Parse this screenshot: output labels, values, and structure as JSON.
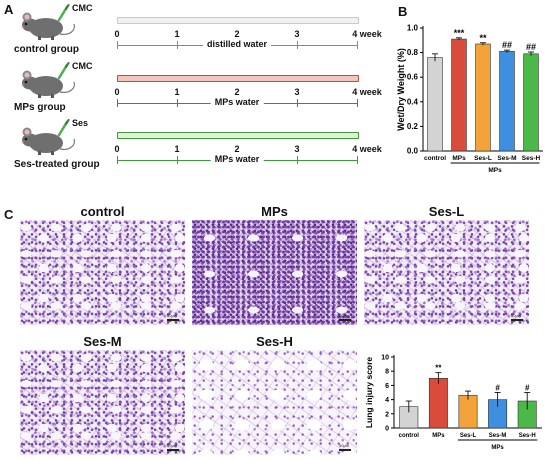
{
  "panel_letters": {
    "a": "A",
    "b": "B",
    "c": "C"
  },
  "timeline": {
    "ticks": [
      "0",
      "1",
      "2",
      "3",
      "4 week"
    ],
    "groups": [
      {
        "name": "control group",
        "drug": "CMC",
        "water": "distilled water",
        "bar_color": "#c9c9c9",
        "bar_fill": "#f1f1f1",
        "line_color": "#888888"
      },
      {
        "name": "MPs group",
        "drug": "CMC",
        "water": "MPs water",
        "bar_color": "#b4533a",
        "bar_fill": "#f2c6bd",
        "line_color": "#b4533a"
      },
      {
        "name": "Ses-treated group",
        "drug": "Ses",
        "water": "MPs water",
        "bar_color": "#3d9a3d",
        "bar_fill": "#dff2d8",
        "line_color": "#3d9a3d"
      }
    ]
  },
  "micrographs": [
    {
      "label": "control",
      "style": "normal"
    },
    {
      "label": "MPs",
      "style": "dense"
    },
    {
      "label": "Ses-L",
      "style": "normal"
    },
    {
      "label": "Ses-M",
      "style": "normal"
    },
    {
      "label": "Ses-H",
      "style": "sparse"
    }
  ],
  "scalebar_label": "50μm",
  "chart_data": [
    {
      "type": "bar",
      "ylabel": "Wet/Dry Weight (%)",
      "categories": [
        "control",
        "MPs",
        "Ses-L",
        "Ses-M",
        "Ses-H"
      ],
      "values": [
        0.76,
        0.91,
        0.87,
        0.81,
        0.79
      ],
      "errors": [
        0.03,
        0.01,
        0.01,
        0.01,
        0.015
      ],
      "annotations": [
        "",
        "***",
        "**",
        "##",
        "##"
      ],
      "colors": [
        "#d3d3d3",
        "#d94c3c",
        "#f2a33a",
        "#3f8fe0",
        "#4cb848"
      ],
      "group_label": "MPs",
      "group_span": [
        1,
        4
      ],
      "ylim": [
        0,
        1.0
      ],
      "yticks": [
        "0.0",
        "0.2",
        "0.4",
        "0.6",
        "0.8",
        "1.0"
      ],
      "ytick_values": [
        0,
        0.2,
        0.4,
        0.6,
        0.8,
        1.0
      ]
    },
    {
      "type": "bar",
      "ylabel": "Lung injury score",
      "categories": [
        "control",
        "MPs",
        "Ses-L",
        "Ses-M",
        "Ses-H"
      ],
      "values": [
        3.0,
        7.0,
        4.6,
        4.0,
        3.8
      ],
      "errors": [
        0.8,
        0.8,
        0.6,
        1.0,
        1.2
      ],
      "annotations": [
        "",
        "**",
        "",
        "#",
        "#"
      ],
      "colors": [
        "#d3d3d3",
        "#d94c3c",
        "#f2a33a",
        "#3f8fe0",
        "#4cb848"
      ],
      "group_label": "MPs",
      "group_span": [
        2,
        4
      ],
      "ylim": [
        0,
        10
      ],
      "yticks": [
        "0",
        "2",
        "4",
        "6",
        "8",
        "10"
      ],
      "ytick_values": [
        0,
        2,
        4,
        6,
        8,
        10
      ]
    }
  ]
}
